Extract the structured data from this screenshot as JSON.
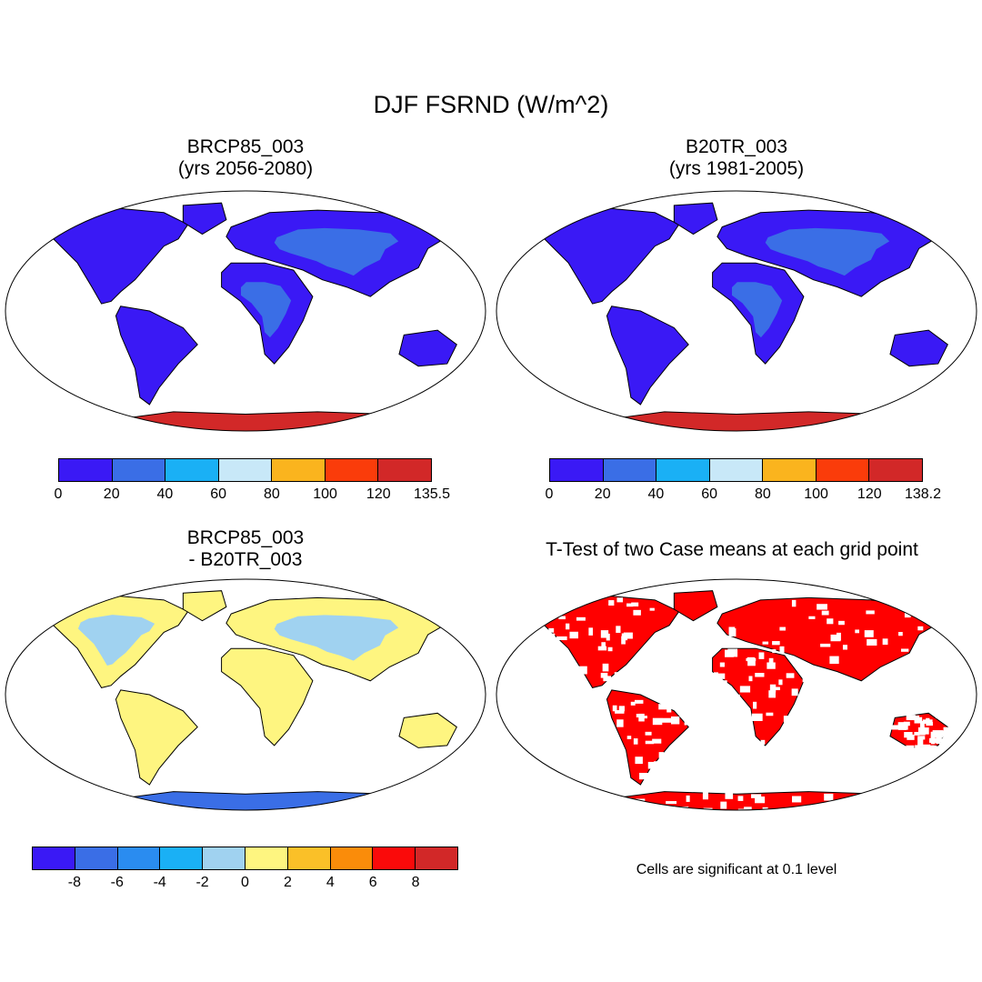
{
  "figure": {
    "title": "DJF FSRND (W/m^2)"
  },
  "colors": {
    "land_stroke": "#000000",
    "ocean": "#ffffff",
    "abs_scale": [
      "#3a19f5",
      "#3a6ee6",
      "#1ab0f5",
      "#c8e8f8",
      "#fab41e",
      "#fa3c0a",
      "#d22828"
    ],
    "diff_scale": [
      "#3a19f5",
      "#3a6ee6",
      "#2a8cf0",
      "#1ab0f5",
      "#a0d2f0",
      "#fef580",
      "#fac028",
      "#fa8c0a",
      "#fa0a0a",
      "#d22828"
    ],
    "ttest_fill": "#ff0000"
  },
  "panels": [
    {
      "id": "brcp85",
      "title_line1": "BRCP85_003",
      "title_line2": "(yrs 2056-2080)",
      "colorbar_ticks": [
        "0",
        "20",
        "40",
        "60",
        "80",
        "100",
        "120",
        "135.5"
      ]
    },
    {
      "id": "b20tr",
      "title_line1": "B20TR_003",
      "title_line2": "(yrs 1981-2005)",
      "colorbar_ticks": [
        "0",
        "20",
        "40",
        "60",
        "80",
        "100",
        "120",
        "138.2"
      ]
    },
    {
      "id": "difference",
      "title_line1": "BRCP85_003",
      "title_line2": "- B20TR_003",
      "colorbar_ticks": [
        "-8",
        "-6",
        "-4",
        "-2",
        "0",
        "2",
        "4",
        "6",
        "8"
      ]
    },
    {
      "id": "ttest",
      "title_line1": "T-Test of two Case means at each grid point",
      "note": "Cells are significant at 0.1 level"
    }
  ]
}
